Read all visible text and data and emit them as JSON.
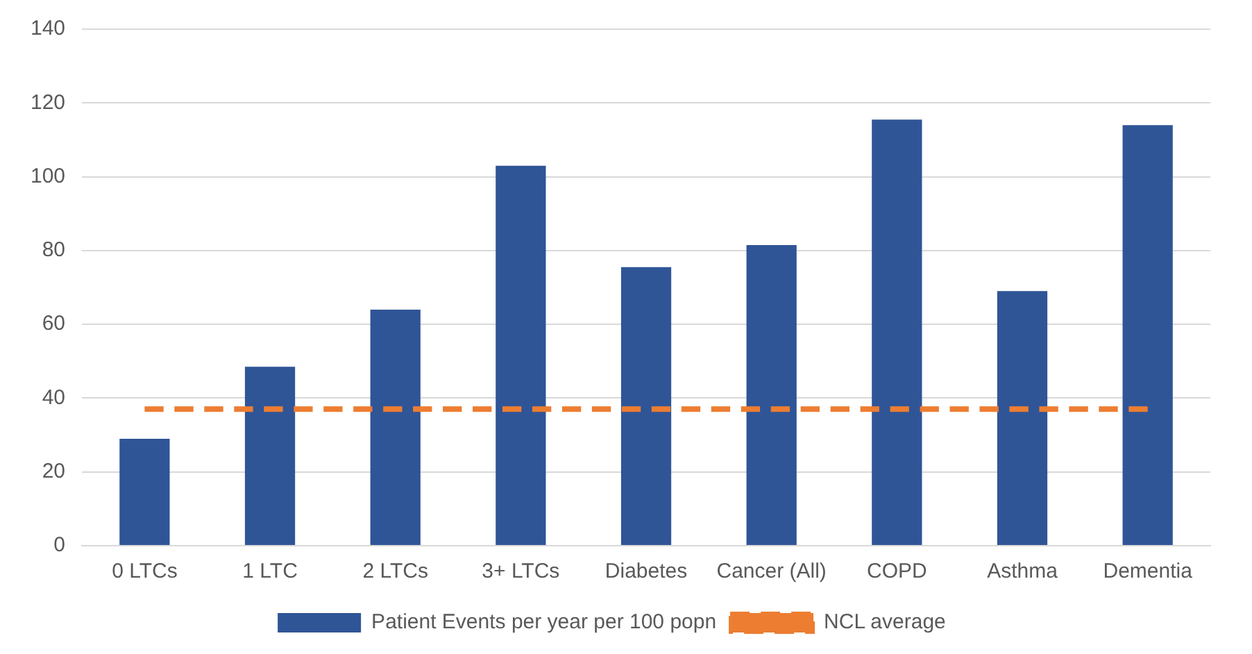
{
  "chart_data": {
    "type": "bar",
    "categories": [
      "0 LTCs",
      "1 LTC",
      "2 LTCs",
      "3+ LTCs",
      "Diabetes",
      "Cancer (All)",
      "COPD",
      "Asthma",
      "Dementia"
    ],
    "series": [
      {
        "name": "Patient Events per year per 100 popn",
        "color": "#2f5597",
        "values": [
          29,
          48.5,
          64,
          103,
          75.5,
          81.5,
          115.5,
          69,
          114
        ]
      },
      {
        "name": "NCL average",
        "type": "line",
        "color": "#ed7d31",
        "line_style": "dashed",
        "marker": "none",
        "values": [
          37,
          37,
          37,
          37,
          37,
          37,
          37,
          37,
          37
        ]
      }
    ],
    "ylim": [
      0,
      140
    ],
    "yticks": [
      0,
      20,
      40,
      60,
      80,
      100,
      120,
      140
    ],
    "grid": "y",
    "legend": "bottom"
  }
}
